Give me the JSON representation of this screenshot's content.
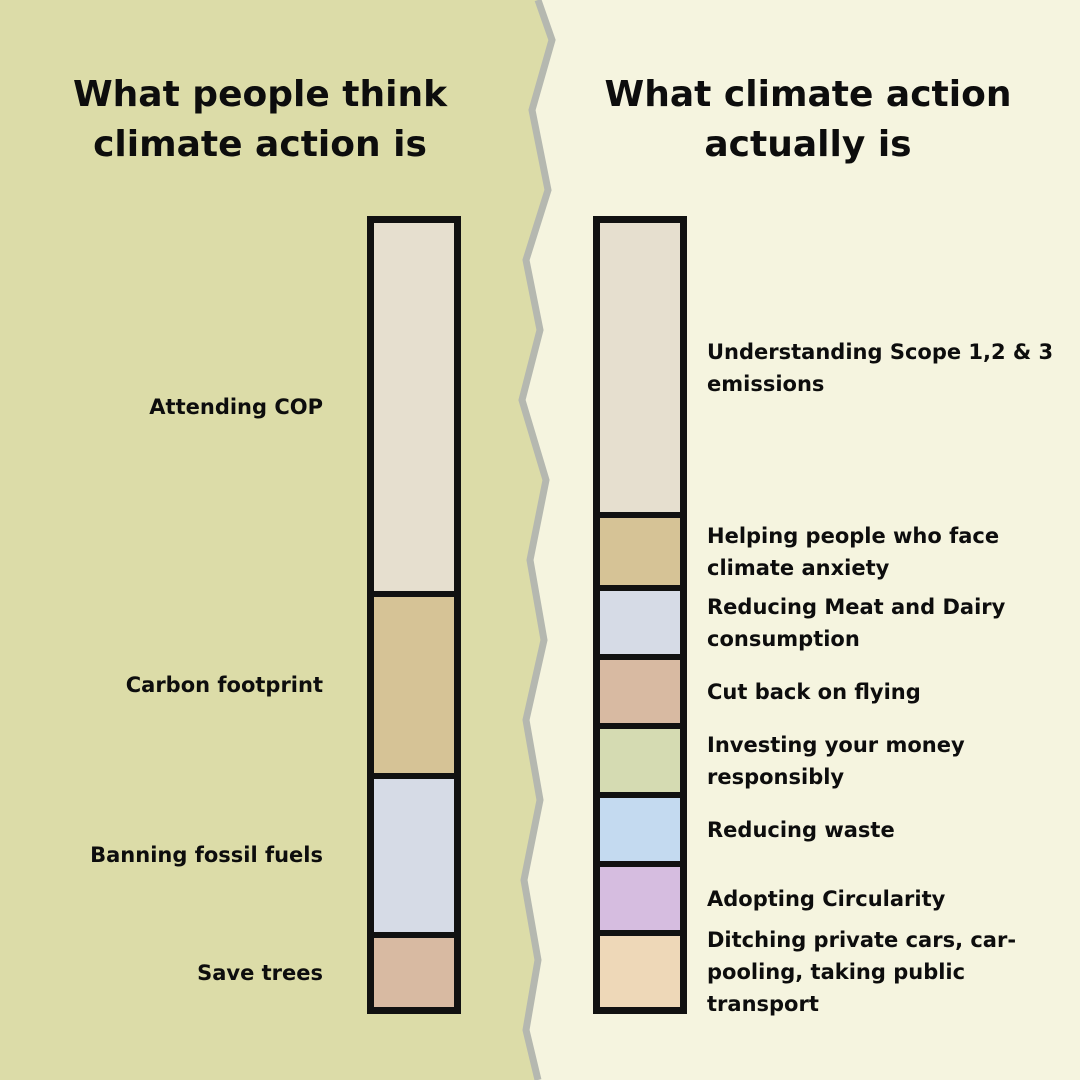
{
  "colors": {
    "left_background": "#dcdca8",
    "right_background": "#f5f4df",
    "divider": "#b5b8b0",
    "bar_outline": "#111111"
  },
  "chart_data": [
    {
      "type": "bar",
      "orientation": "vertical-stacked",
      "title": "What people think climate action is",
      "grid": false,
      "categories": [
        "Attending COP",
        "Carbon footprint",
        "Banning fossil fuels",
        "Save trees"
      ],
      "values": [
        48,
        23,
        20,
        9
      ],
      "colors": [
        "#e6dfcf",
        "#d6c396",
        "#d6dbe6",
        "#d8baa2"
      ]
    },
    {
      "type": "bar",
      "orientation": "vertical-stacked",
      "title": "What climate action actually is",
      "grid": false,
      "categories": [
        "Understanding Scope 1,2 & 3 emissions",
        "Helping people who face climate anxiety",
        "Reducing Meat and Dairy consumption",
        "Cut back on flying",
        "Investing your money responsibly",
        "Reducing waste",
        "Adopting Circularity",
        "Ditching private cars, car-pooling, taking public transport"
      ],
      "values": [
        39,
        9,
        8.5,
        8.5,
        8.5,
        8.5,
        8.5,
        9.5
      ],
      "colors": [
        "#e6dfcf",
        "#d6c396",
        "#d6dbe6",
        "#d8baa2",
        "#d5dbb2",
        "#c4daf0",
        "#d6bde0",
        "#eed8b8"
      ]
    }
  ]
}
